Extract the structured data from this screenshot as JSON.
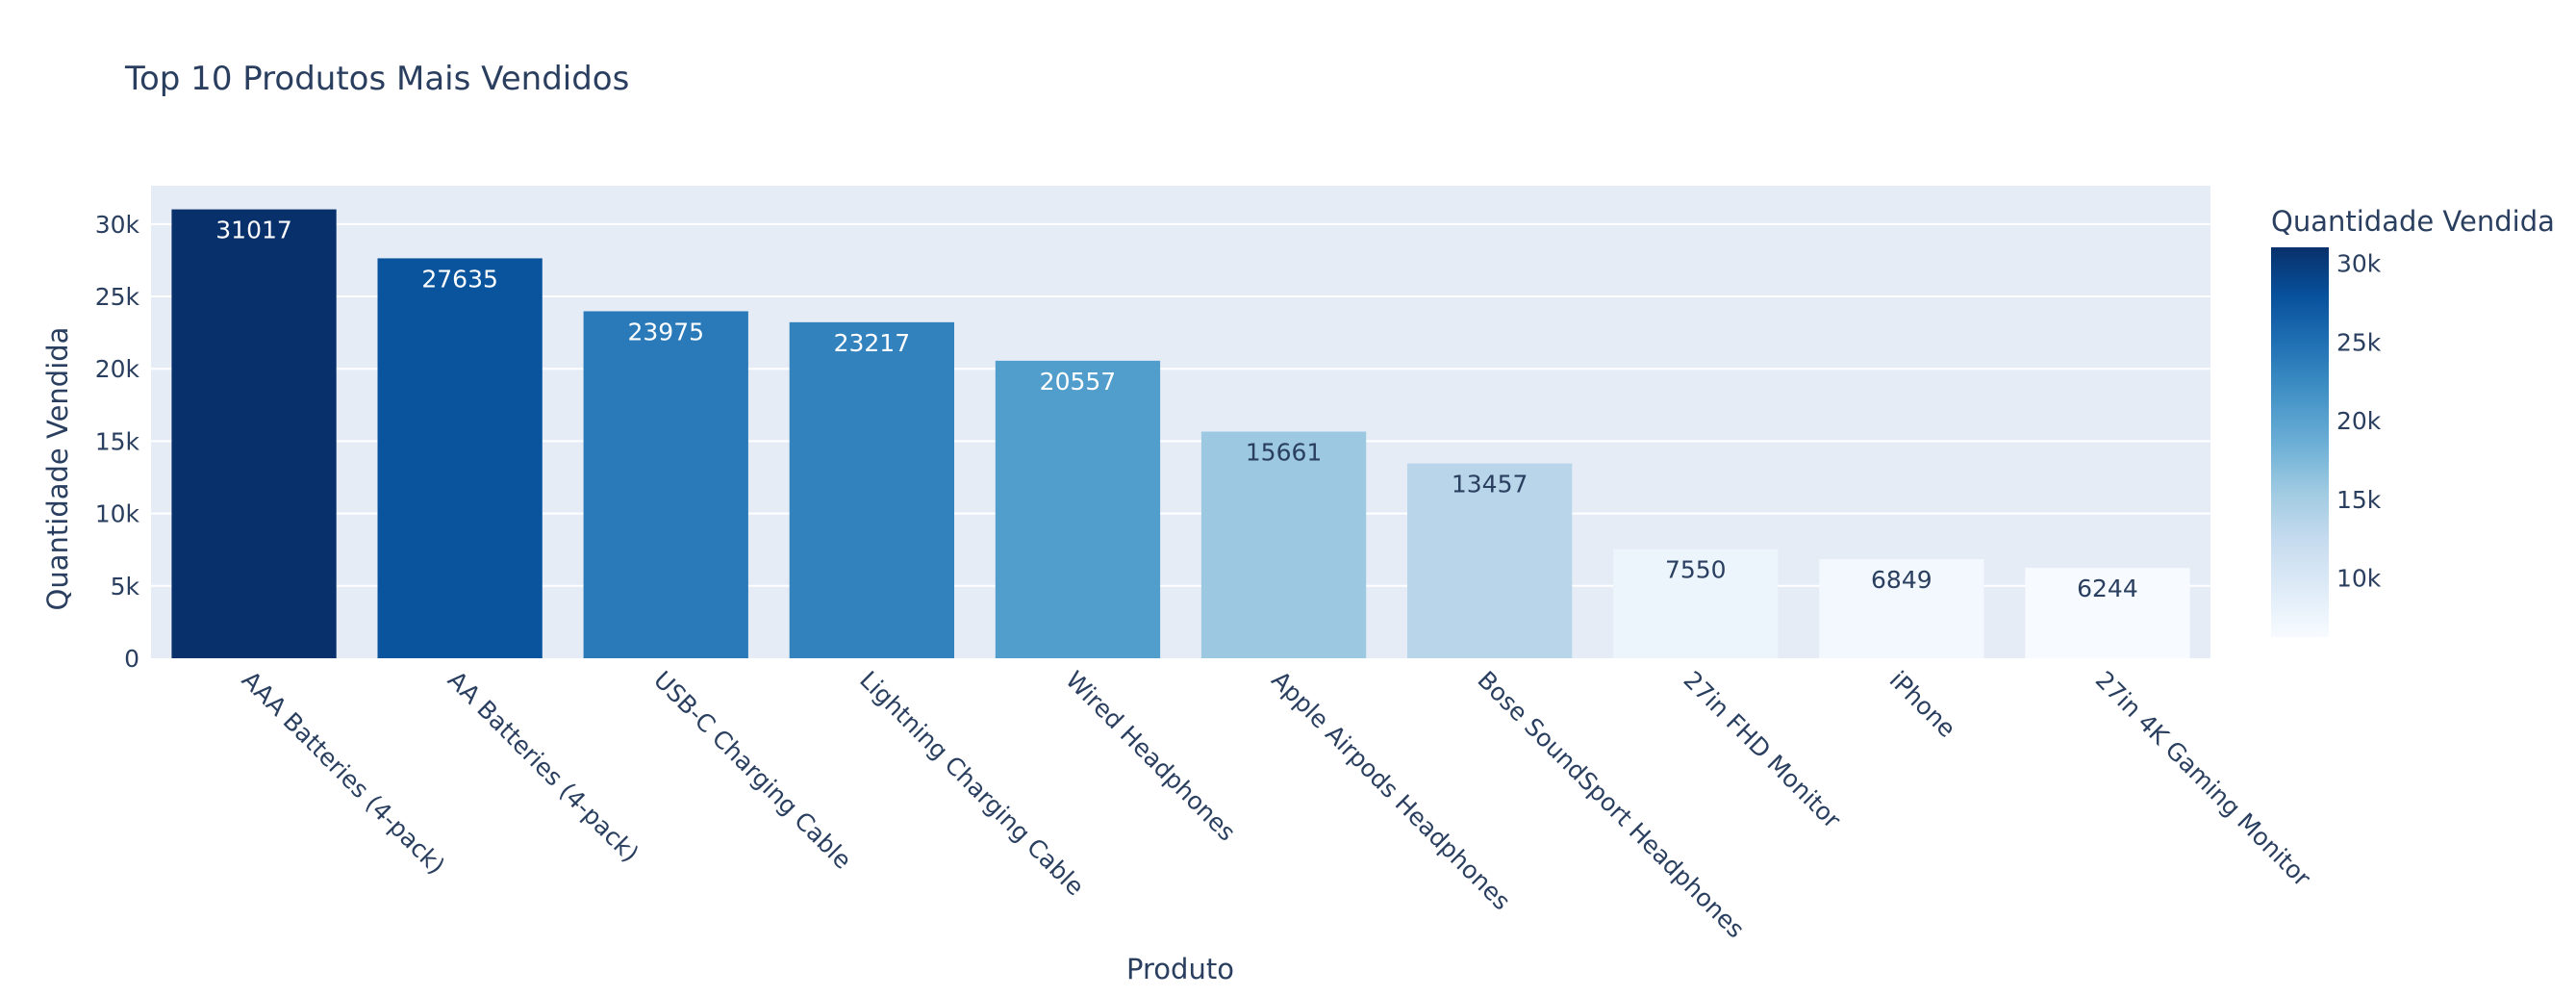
{
  "chart_data": {
    "type": "bar",
    "title": "Top 10 Produtos Mais Vendidos",
    "xlabel": "Produto",
    "ylabel": "Quantidade Vendida",
    "categories": [
      "AAA Batteries (4-pack)",
      "AA Batteries (4-pack)",
      "USB-C Charging Cable",
      "Lightning Charging Cable",
      "Wired Headphones",
      "Apple Airpods Headphones",
      "Bose SoundSport Headphones",
      "27in FHD Monitor",
      "iPhone",
      "27in 4K Gaming Monitor"
    ],
    "values": [
      31017,
      27635,
      23975,
      23217,
      20557,
      15661,
      13457,
      7550,
      6849,
      6244
    ],
    "data_labels": [
      "31017",
      "27635",
      "23975",
      "23217",
      "20557",
      "15661",
      "13457",
      "7550",
      "6849",
      "6244"
    ],
    "ylim": [
      0,
      32650
    ],
    "y_ticks": [
      0,
      5000,
      10000,
      15000,
      20000,
      25000,
      30000
    ],
    "y_tick_labels": [
      "0",
      "5k",
      "10k",
      "15k",
      "20k",
      "25k",
      "30k"
    ],
    "grid": true,
    "colorbar": {
      "title": "Quantidade Vendida",
      "range": [
        6244,
        31017
      ],
      "ticks": [
        10000,
        15000,
        20000,
        25000,
        30000
      ],
      "tick_labels": [
        "10k",
        "15k",
        "20k",
        "25k",
        "30k"
      ],
      "placement": "right",
      "colorscale": [
        "#f7fbff",
        "#deebf7",
        "#c6dbef",
        "#9ecae1",
        "#6baed6",
        "#4292c6",
        "#2171b5",
        "#08519c",
        "#08306b"
      ]
    },
    "colors": {
      "plot_background": "#e5ecf6",
      "grid": "#ffffff",
      "text": "#2a3f5f"
    }
  }
}
